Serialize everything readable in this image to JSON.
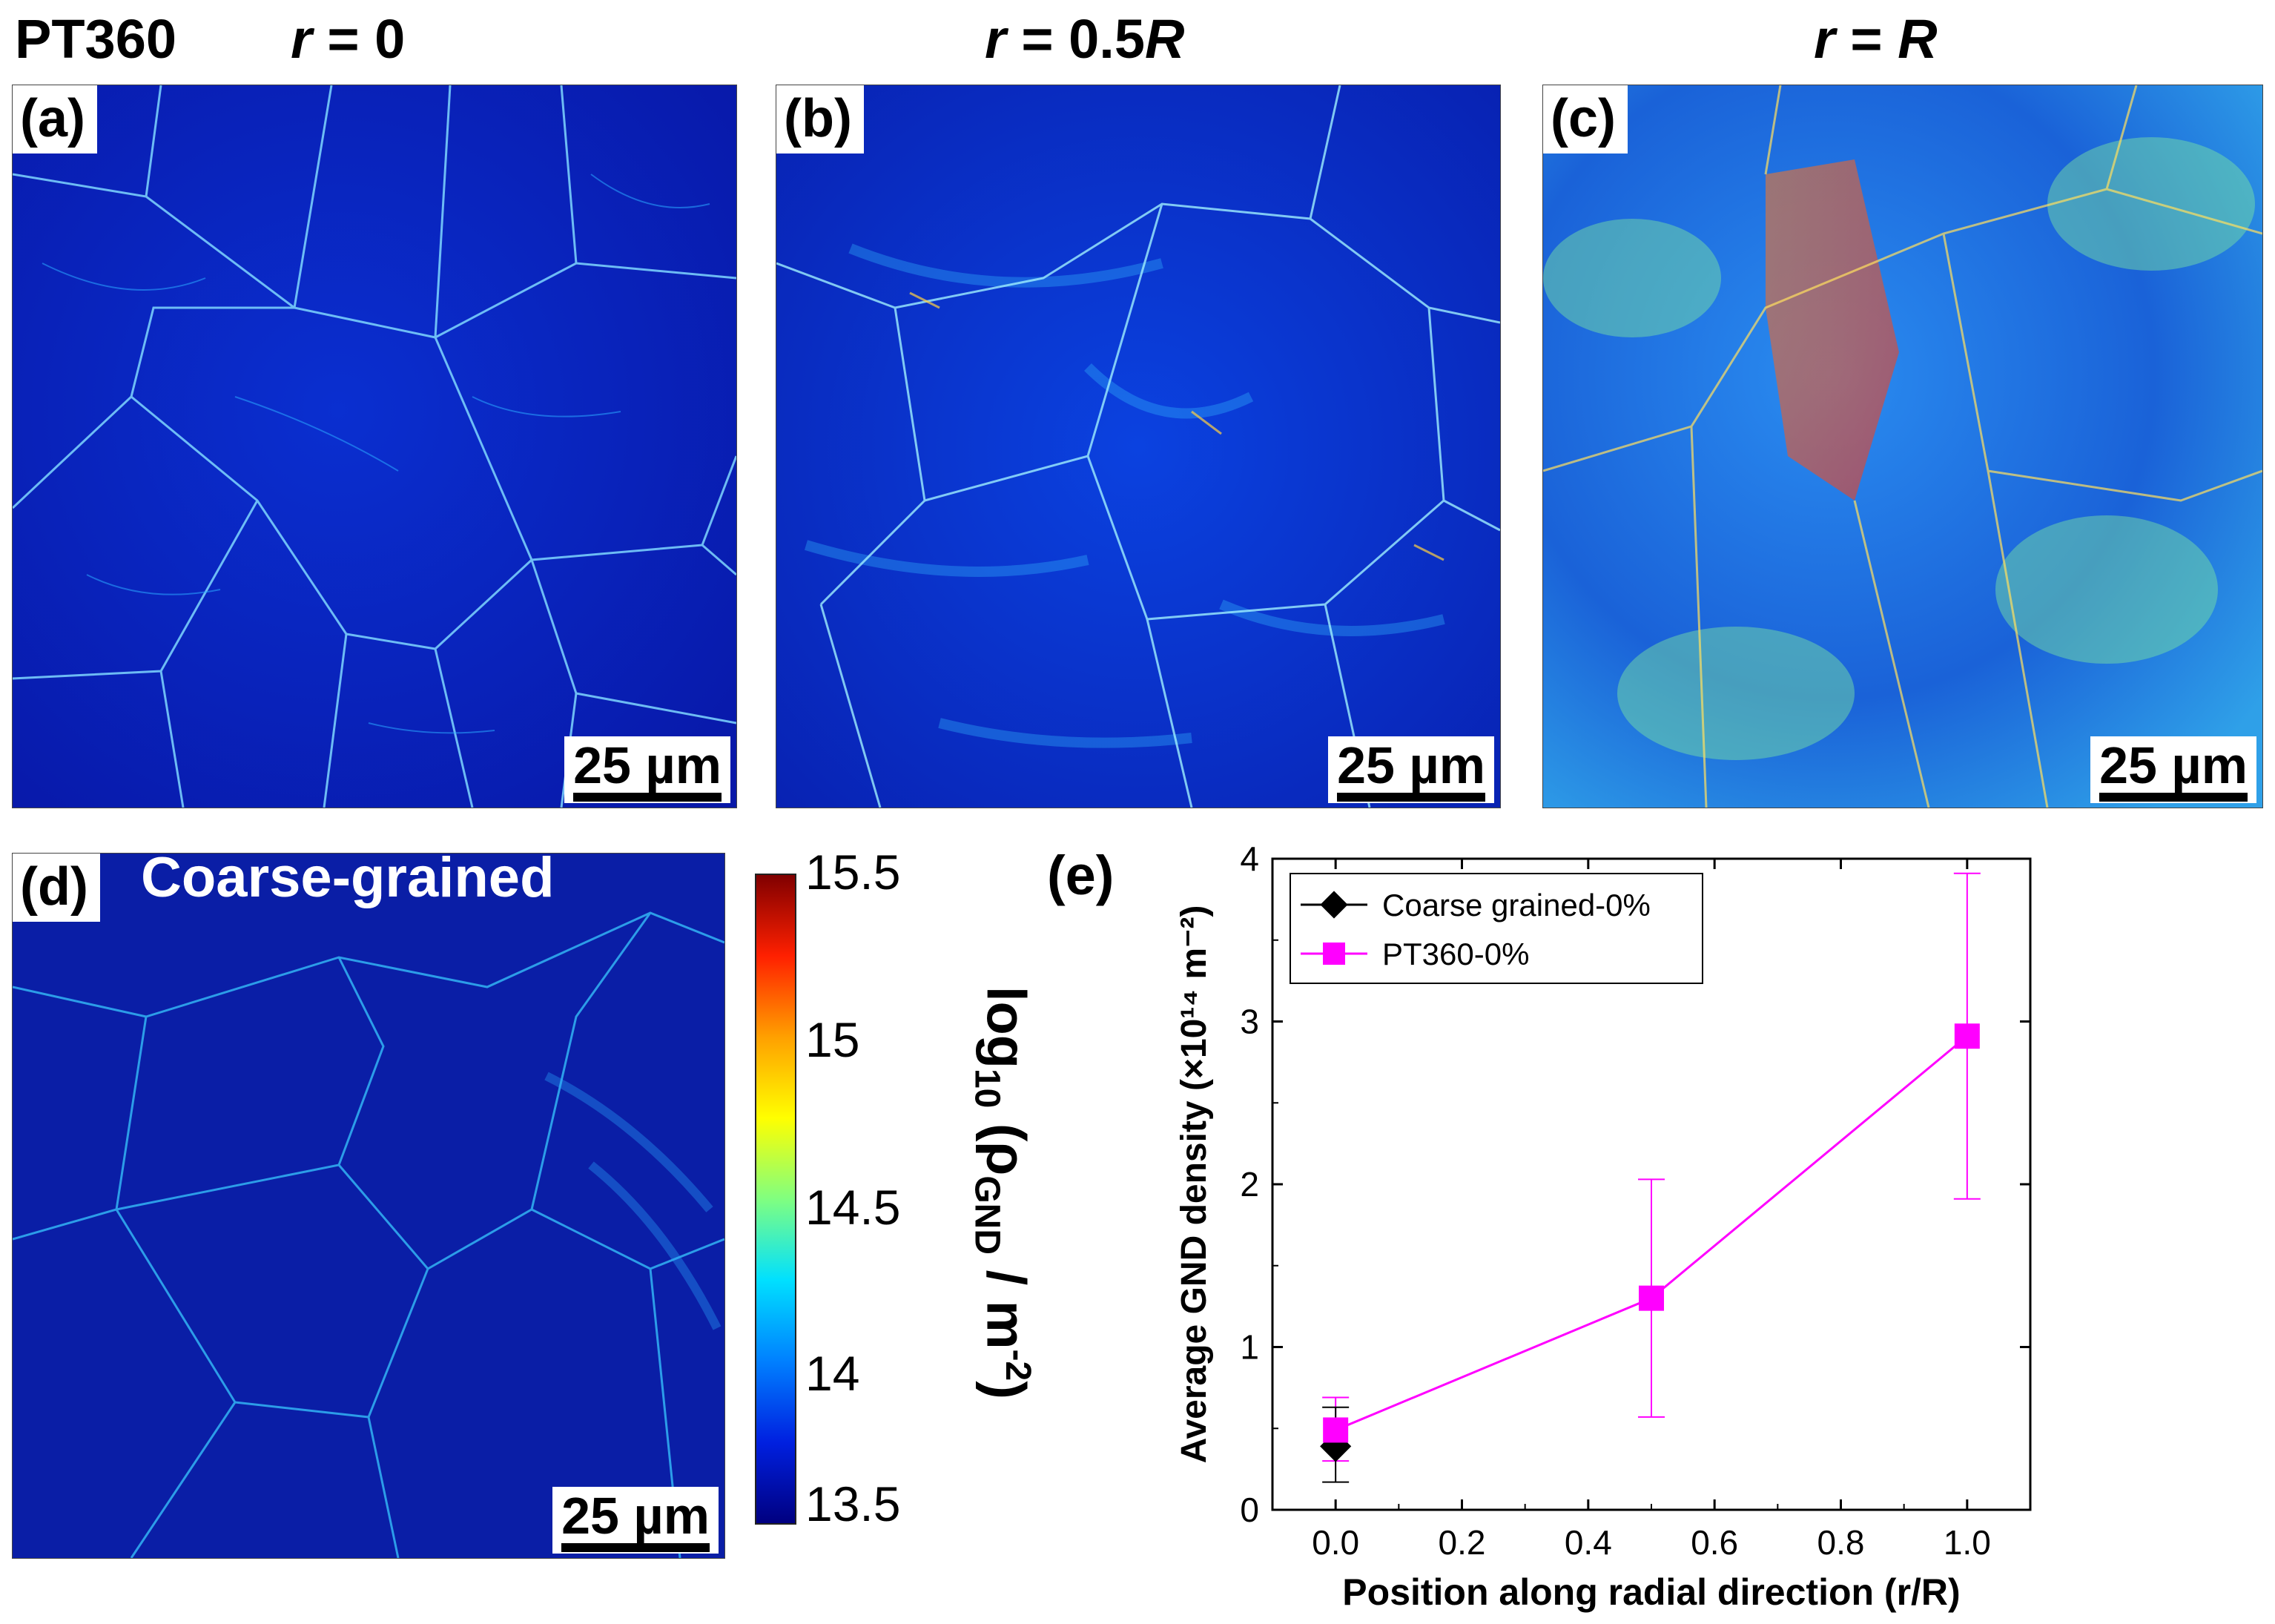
{
  "header": {
    "sample": "PT360",
    "col_a": {
      "var": "r",
      "eq": " = 0"
    },
    "col_b": {
      "var": "r",
      "eq": " = 0.5",
      "suffix": "R"
    },
    "col_c": {
      "var": "r",
      "eq": " = ",
      "suffix": "R"
    }
  },
  "panels": {
    "a": {
      "label": "(a)",
      "scale": "25 µm"
    },
    "b": {
      "label": "(b)",
      "scale": "25 µm"
    },
    "c": {
      "label": "(c)",
      "scale": "25 µm"
    },
    "d": {
      "label": "(d)",
      "title": "Coarse-grained",
      "scale": "25 µm"
    },
    "e": {
      "label": "(e)"
    }
  },
  "colorbar": {
    "ticks": [
      "15.5",
      "15",
      "14.5",
      "14",
      "13.5"
    ],
    "title": {
      "pre": "log",
      "sub1": "10",
      "mid": " (ρ",
      "sub2": "GND",
      "unit": " / m",
      "sup": "-2",
      "post": ")"
    },
    "colors": [
      "#800000",
      "#ff2000",
      "#ffa000",
      "#ffff00",
      "#80ff80",
      "#00e0ff",
      "#0080ff",
      "#0020e0",
      "#000080"
    ]
  },
  "chart_data": {
    "type": "line",
    "title": "",
    "xlabel": "Position along radial direction (r/R)",
    "ylabel": "Average GND density (×10¹⁴ m⁻²)",
    "xlim": [
      -0.1,
      1.1
    ],
    "ylim": [
      0,
      4
    ],
    "xticks": [
      "0.0",
      "0.2",
      "0.4",
      "0.6",
      "0.8",
      "1.0"
    ],
    "yticks": [
      "0",
      "1",
      "2",
      "3",
      "4"
    ],
    "legend_position": "top-left",
    "series": [
      {
        "name": "Coarse grained-0%",
        "marker": "diamond",
        "color": "#000000",
        "x": [
          0.0
        ],
        "y": [
          0.39
        ],
        "err_low": [
          0.17
        ],
        "err_high": [
          0.63
        ]
      },
      {
        "name": "PT360-0%",
        "marker": "square",
        "color": "#ff00ff",
        "x": [
          0.0,
          0.5,
          1.0
        ],
        "y": [
          0.49,
          1.3,
          2.91
        ],
        "err_low": [
          0.3,
          0.57,
          1.91
        ],
        "err_high": [
          0.69,
          2.03,
          3.91
        ]
      }
    ]
  }
}
